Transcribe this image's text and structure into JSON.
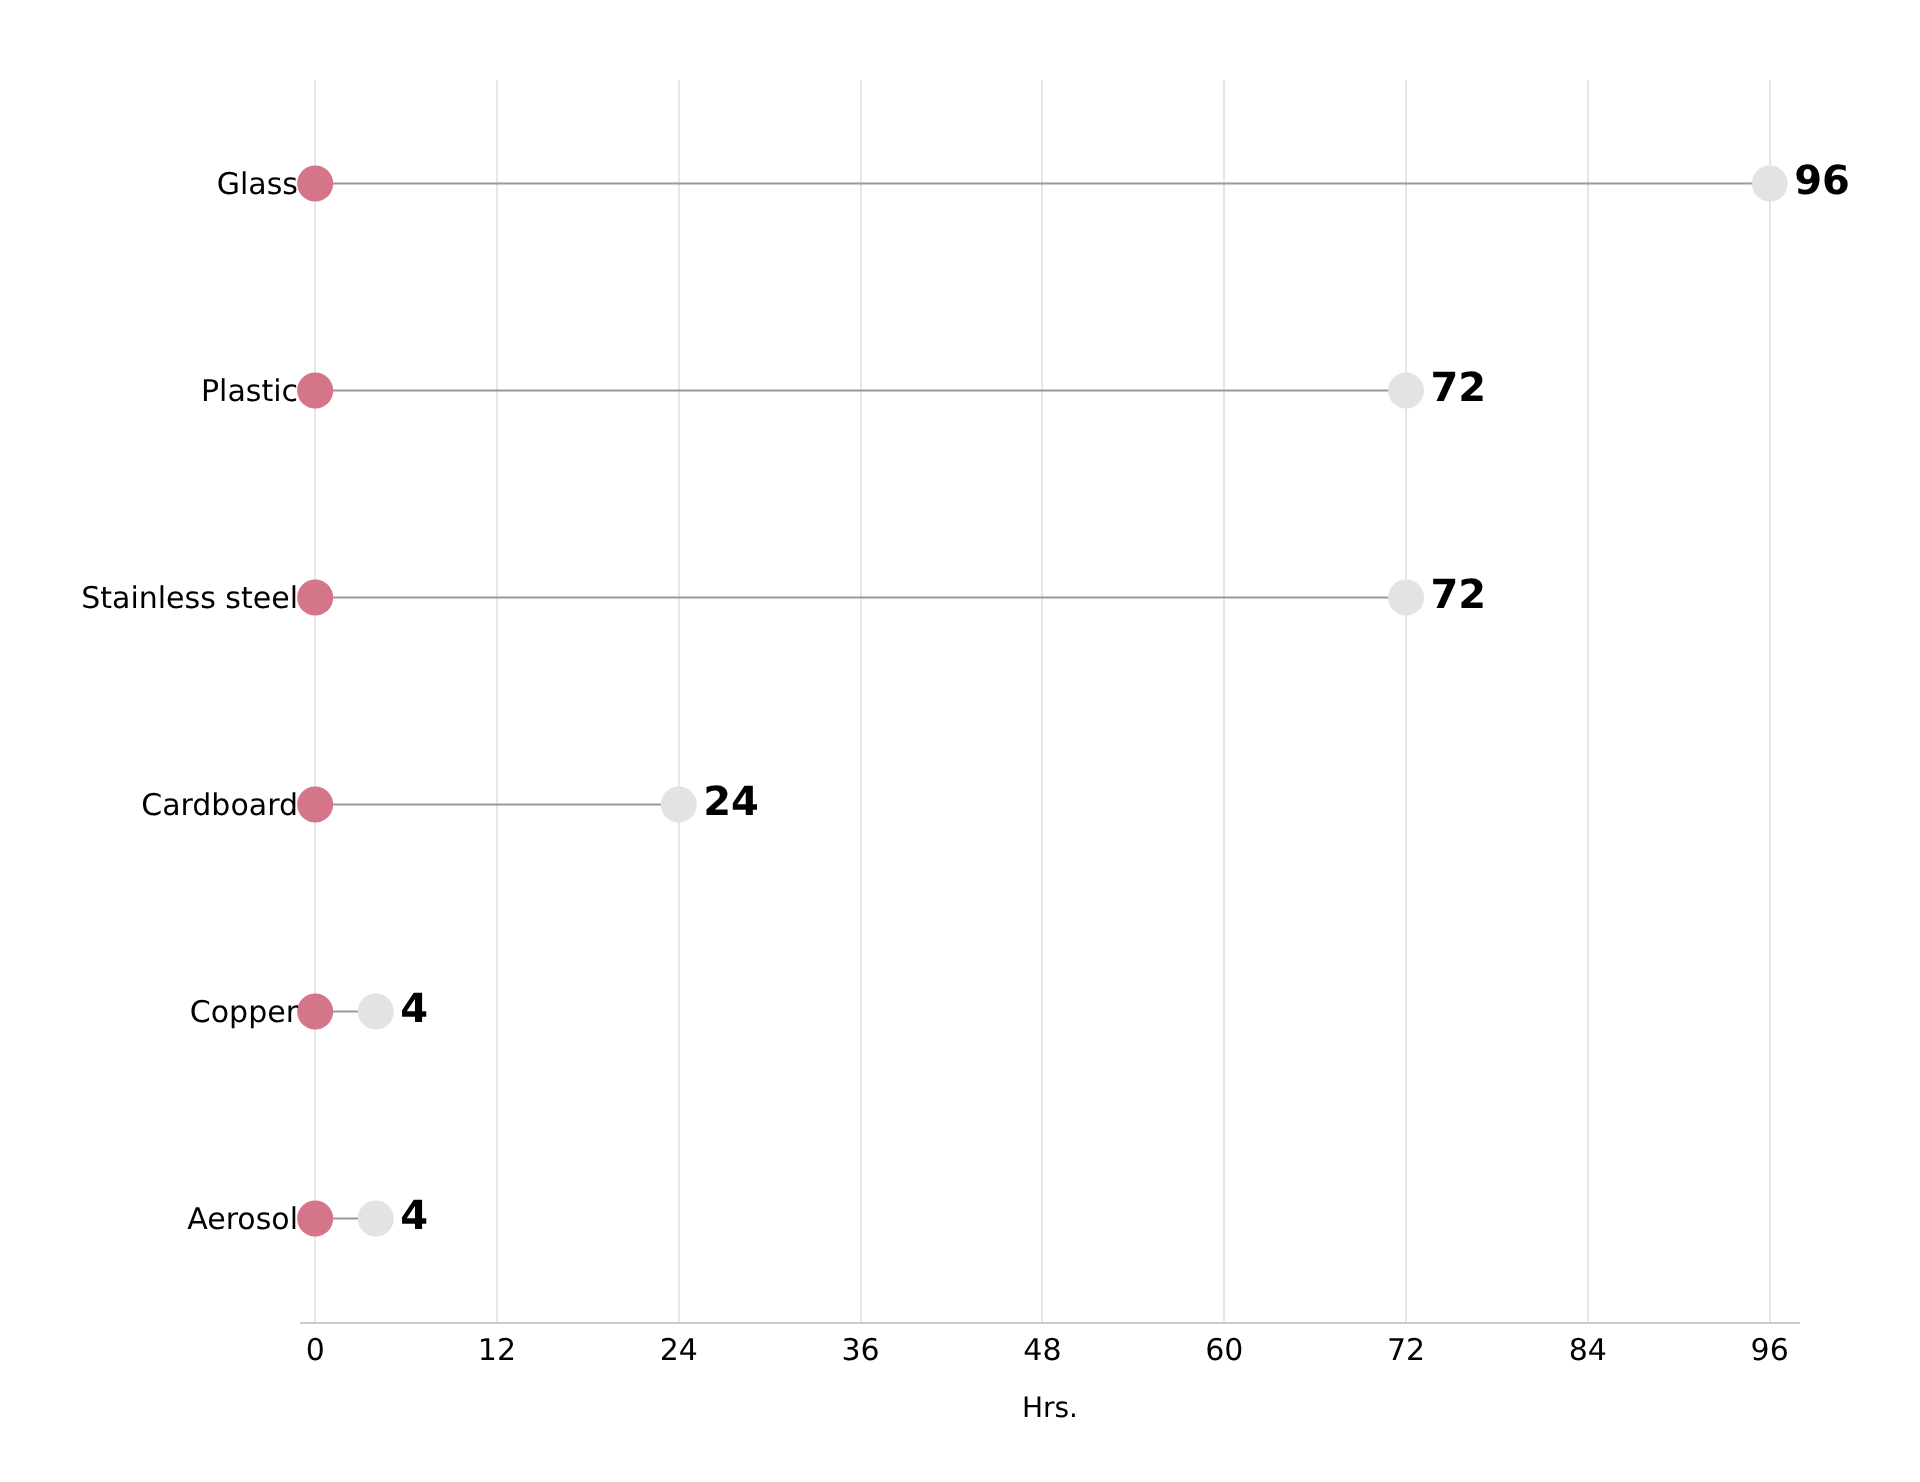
{
  "chart_data": {
    "type": "lollipop",
    "orientation": "horizontal",
    "xlabel": "Hrs.",
    "categories": [
      "Glass",
      "Plastic",
      "Stainless steel",
      "Cardboard",
      "Copper",
      "Aerosol"
    ],
    "series": [
      {
        "color": "#e3e3e3",
        "values": [
          96,
          72,
          72,
          24,
          4,
          4
        ],
        "value_labels": [
          "96",
          "72",
          "72",
          "24",
          "4",
          "4"
        ]
      },
      {
        "type": "scatter",
        "color": "#d4758a",
        "values": [
          0,
          0,
          0,
          0,
          0,
          0
        ]
      }
    ],
    "xlim": [
      -1,
      98
    ],
    "xticks": [
      0,
      12,
      24,
      36,
      48,
      60,
      72,
      84,
      96
    ],
    "grid": "x",
    "marker": "circle"
  }
}
